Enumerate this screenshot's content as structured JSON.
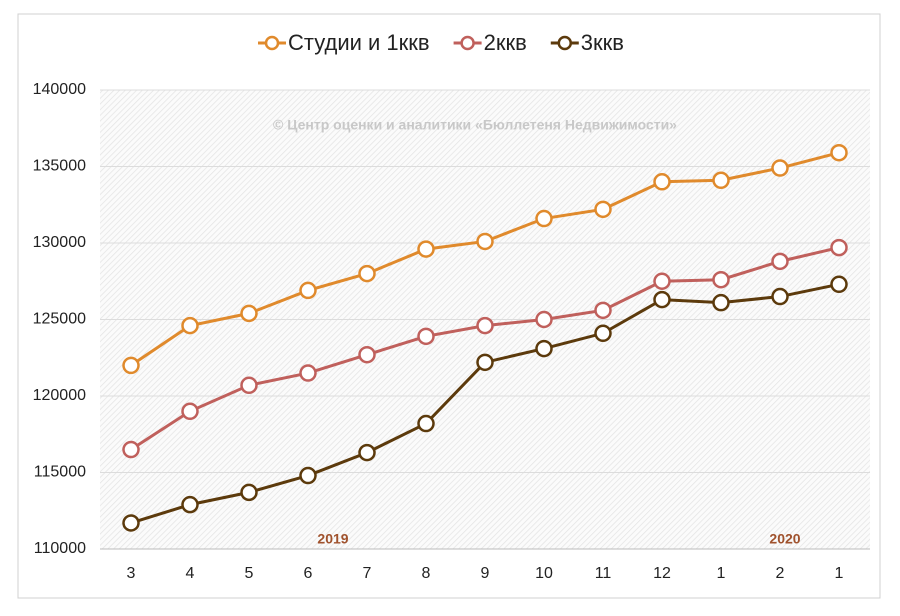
{
  "chart_data": {
    "type": "line",
    "categories": [
      "3",
      "4",
      "5",
      "6",
      "7",
      "8",
      "9",
      "10",
      "11",
      "12",
      "1",
      "2",
      "1"
    ],
    "series": [
      {
        "name": "Студии и 1ккв",
        "color": "#e08a2c",
        "values": [
          122000,
          124600,
          125400,
          126900,
          128000,
          129600,
          130100,
          131600,
          132200,
          134000,
          134100,
          134900,
          135900
        ]
      },
      {
        "name": "2ккв",
        "color": "#c0605c",
        "values": [
          116500,
          119000,
          120700,
          121500,
          122700,
          123900,
          124600,
          125000,
          125600,
          127500,
          127600,
          128800,
          129700
        ]
      },
      {
        "name": "3ккв",
        "color": "#5c3a0c",
        "values": [
          111700,
          112900,
          113700,
          114800,
          116300,
          118200,
          122200,
          123100,
          124100,
          126300,
          126100,
          126500,
          127300
        ]
      }
    ],
    "ylim": [
      110000,
      140000
    ],
    "yticks": [
      110000,
      115000,
      120000,
      125000,
      130000,
      135000,
      140000
    ],
    "grid": true,
    "legend": "top",
    "annotations": [
      "© Центр оценки и аналитики «Бюллетеня Недвижимости»",
      "2019",
      "2020"
    ]
  }
}
